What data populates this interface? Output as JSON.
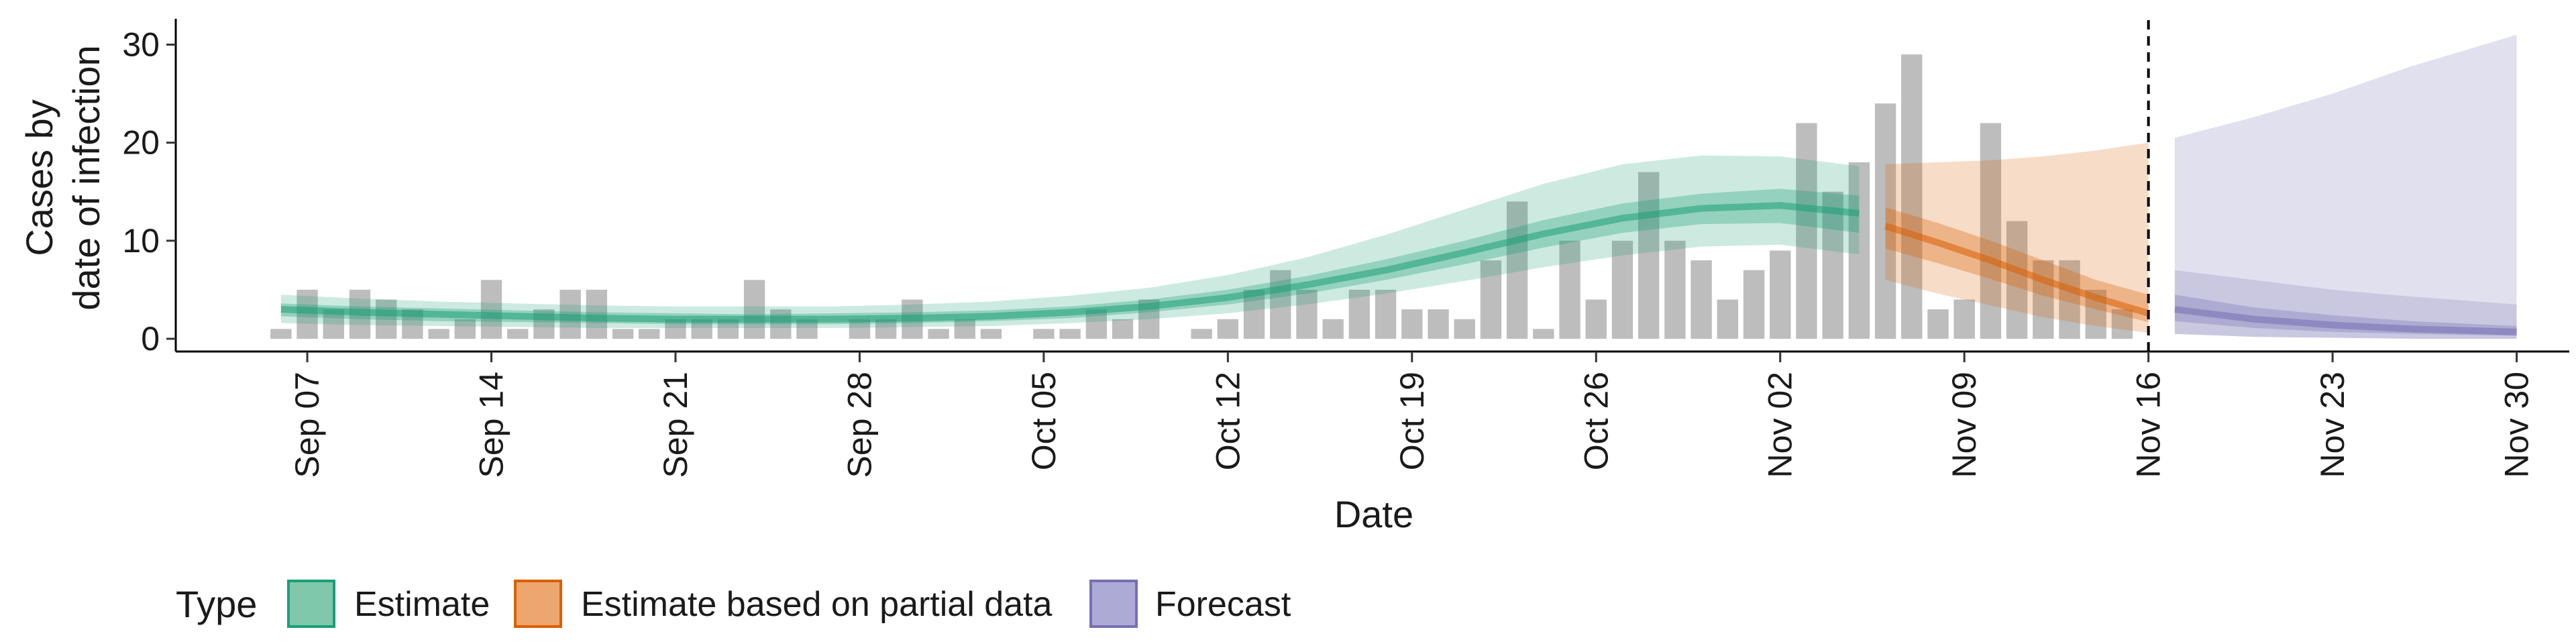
{
  "chart_data": {
    "type": "area",
    "xlabel": "Date",
    "ylabel_lines": [
      "Cases by",
      "date of infection"
    ],
    "x_range": [
      "2020-09-02",
      "2020-12-02"
    ],
    "ylim": [
      -1.3,
      32.5
    ],
    "y_ticks": [
      0,
      10,
      20,
      30
    ],
    "x_ticks": [
      {
        "date": "2020-09-07",
        "label": "Sep 07"
      },
      {
        "date": "2020-09-14",
        "label": "Sep 14"
      },
      {
        "date": "2020-09-21",
        "label": "Sep 21"
      },
      {
        "date": "2020-09-28",
        "label": "Sep 28"
      },
      {
        "date": "2020-10-05",
        "label": "Oct 05"
      },
      {
        "date": "2020-10-12",
        "label": "Oct 12"
      },
      {
        "date": "2020-10-19",
        "label": "Oct 19"
      },
      {
        "date": "2020-10-26",
        "label": "Oct 26"
      },
      {
        "date": "2020-11-02",
        "label": "Nov 02"
      },
      {
        "date": "2020-11-09",
        "label": "Nov 09"
      },
      {
        "date": "2020-11-16",
        "label": "Nov 16"
      },
      {
        "date": "2020-11-23",
        "label": "Nov 23"
      },
      {
        "date": "2020-11-30",
        "label": "Nov 30"
      }
    ],
    "forecast_boundary_date": "2020-11-16",
    "grid": false,
    "legend": {
      "position": "bottom",
      "title": "Type",
      "items": [
        {
          "label": "Estimate",
          "fill": "#7fc8ab",
          "stroke": "#1b9e77"
        },
        {
          "label": "Estimate based on partial data",
          "fill": "#eea66f",
          "stroke": "#d95f02"
        },
        {
          "label": "Forecast",
          "fill": "#aeaad6",
          "stroke": "#7570b3"
        }
      ]
    },
    "observed_cases": {
      "start_date": "2020-09-06",
      "values": [
        1,
        5,
        3,
        5,
        4,
        3,
        1,
        2,
        6,
        1,
        3,
        5,
        5,
        1,
        1,
        2,
        2,
        2,
        6,
        3,
        2,
        0,
        2,
        2,
        4,
        1,
        2,
        1,
        0,
        1,
        1,
        3,
        2,
        4,
        0,
        1,
        2,
        5,
        7,
        5,
        2,
        5,
        5,
        3,
        3,
        2,
        8,
        14,
        1,
        10,
        4,
        10,
        17,
        10,
        8,
        4,
        7,
        9,
        22,
        15,
        18,
        24,
        29,
        3,
        4,
        22,
        12,
        8,
        8,
        5,
        3
      ],
      "color": "#bdbdbd"
    },
    "series": [
      {
        "name": "Estimate",
        "color": "#1b9e77",
        "dates": [
          "2020-09-06",
          "2020-09-09",
          "2020-09-12",
          "2020-09-15",
          "2020-09-18",
          "2020-09-21",
          "2020-09-24",
          "2020-09-27",
          "2020-09-30",
          "2020-10-03",
          "2020-10-06",
          "2020-10-09",
          "2020-10-12",
          "2020-10-15",
          "2020-10-18",
          "2020-10-21",
          "2020-10-24",
          "2020-10-27",
          "2020-10-30",
          "2020-11-02",
          "2020-11-05"
        ],
        "median": [
          3.0,
          2.7,
          2.5,
          2.3,
          2.1,
          2.0,
          2.0,
          2.0,
          2.1,
          2.3,
          2.7,
          3.3,
          4.2,
          5.5,
          7.0,
          8.8,
          10.7,
          12.3,
          13.3,
          13.6,
          12.8
        ],
        "lower_50": [
          2.3,
          2.0,
          1.8,
          1.7,
          1.6,
          1.5,
          1.5,
          1.5,
          1.6,
          1.8,
          2.1,
          2.7,
          3.5,
          4.6,
          6.0,
          7.6,
          9.3,
          10.8,
          11.7,
          11.8,
          10.8
        ],
        "upper_50": [
          3.6,
          3.3,
          3.1,
          2.9,
          2.7,
          2.6,
          2.5,
          2.6,
          2.7,
          2.9,
          3.3,
          4.0,
          5.0,
          6.4,
          8.1,
          10.0,
          12.1,
          13.8,
          14.8,
          15.3,
          14.6
        ],
        "lower_90": [
          1.6,
          1.4,
          1.3,
          1.2,
          1.1,
          1.1,
          1.1,
          1.1,
          1.2,
          1.3,
          1.6,
          2.0,
          2.6,
          3.5,
          4.6,
          5.9,
          7.3,
          8.5,
          9.4,
          9.6,
          8.6
        ],
        "upper_90": [
          4.5,
          4.1,
          3.8,
          3.6,
          3.4,
          3.3,
          3.3,
          3.3,
          3.5,
          3.8,
          4.4,
          5.2,
          6.5,
          8.3,
          10.6,
          13.2,
          15.8,
          17.8,
          18.7,
          18.6,
          17.6
        ]
      },
      {
        "name": "Estimate based on partial data",
        "color": "#d95f02",
        "dates": [
          "2020-11-06",
          "2020-11-08",
          "2020-11-10",
          "2020-11-12",
          "2020-11-14",
          "2020-11-16"
        ],
        "median": [
          11.5,
          9.8,
          8.0,
          6.0,
          4.2,
          2.6
        ],
        "lower_50": [
          9.2,
          7.7,
          6.1,
          4.4,
          3.0,
          1.7
        ],
        "upper_50": [
          13.4,
          11.8,
          10.0,
          8.0,
          6.0,
          4.5
        ],
        "lower_90": [
          6.0,
          4.6,
          3.4,
          2.2,
          1.3,
          0.6
        ],
        "upper_90": [
          17.8,
          18.0,
          18.2,
          18.6,
          19.2,
          20.0
        ]
      },
      {
        "name": "Forecast",
        "color": "#7570b3",
        "dates": [
          "2020-11-17",
          "2020-11-20",
          "2020-11-23",
          "2020-11-26",
          "2020-11-30"
        ],
        "median": [
          3.0,
          2.0,
          1.4,
          1.0,
          0.7
        ],
        "lower_50": [
          1.8,
          1.1,
          0.7,
          0.5,
          0.3
        ],
        "upper_50": [
          4.5,
          3.2,
          2.4,
          1.8,
          1.3
        ],
        "lower_90": [
          0.5,
          0.2,
          0.1,
          0.0,
          0.0
        ],
        "upper_90": [
          20.5,
          22.6,
          25.0,
          27.8,
          31.0
        ],
        "upper_90b": [
          7.0,
          6.0,
          5.0,
          4.3,
          3.5
        ]
      }
    ]
  }
}
